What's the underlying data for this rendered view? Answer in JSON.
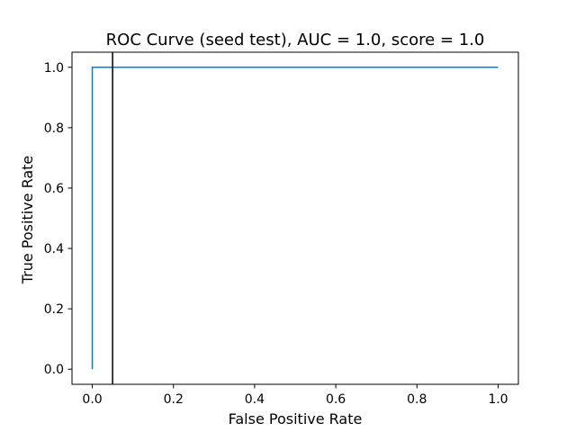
{
  "chart_data": {
    "type": "line",
    "title": "ROC Curve (seed test), AUC = 1.0, score = 1.0",
    "xlabel": "False Positive Rate",
    "ylabel": "True Positive Rate",
    "xlim": [
      -0.05,
      1.05
    ],
    "ylim": [
      -0.05,
      1.05
    ],
    "xticks": [
      0.0,
      0.2,
      0.4,
      0.6,
      0.8,
      1.0
    ],
    "yticks": [
      0.0,
      0.2,
      0.4,
      0.6,
      0.8,
      1.0
    ],
    "xtick_labels": [
      "0.0",
      "0.2",
      "0.4",
      "0.6",
      "0.8",
      "1.0"
    ],
    "ytick_labels": [
      "0.0",
      "0.2",
      "0.4",
      "0.6",
      "0.8",
      "1.0"
    ],
    "grid": false,
    "series": [
      {
        "color": "#1f77b4",
        "x": [
          0.0,
          0.0,
          1.0
        ],
        "y": [
          0.0,
          1.0,
          1.0
        ]
      }
    ],
    "vlines": [
      {
        "x": 0.05,
        "color": "#000000"
      }
    ]
  }
}
